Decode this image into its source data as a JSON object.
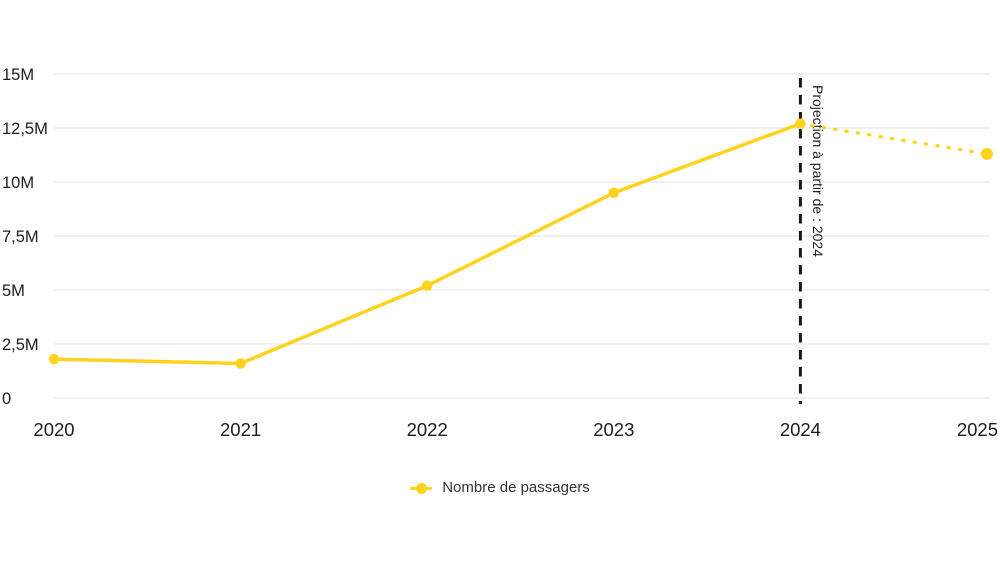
{
  "chart_data": {
    "type": "line",
    "title": "",
    "x_categories": [
      "2020",
      "2021",
      "2022",
      "2023",
      "2024",
      "2025"
    ],
    "series": [
      {
        "name": "Nombre de passagers",
        "color": "#FFD21E",
        "values_millions": [
          1.8,
          1.6,
          5.2,
          9.5,
          12.7,
          11.3
        ],
        "solid_until_category": "2024",
        "dotted_projection_after_category": "2024"
      }
    ],
    "ylim_millions": [
      0,
      15
    ],
    "yticks_millions": [
      0,
      2.5,
      5,
      7.5,
      10,
      12.5,
      15
    ],
    "ytick_labels": [
      "0",
      "2,5M",
      "5M",
      "7,5M",
      "10M",
      "12,5M",
      "15M"
    ],
    "grid": "horizontal",
    "legend_position": "bottom",
    "annotation": {
      "type": "dashed-vertical-line",
      "at_category": "2024",
      "label": "Projection à partir de : 2024"
    }
  },
  "legend": {
    "items": [
      {
        "label": "Nombre de passagers",
        "marker": "line-with-dot",
        "color": "#FFD21E"
      }
    ]
  },
  "colors": {
    "background": "#ffffff",
    "series_yellow": "#FFD21E",
    "gridline": "#ececec",
    "axis_text": "#1d1d1b",
    "annotation_line": "#1a1a1a",
    "legend_text": "#333331"
  }
}
